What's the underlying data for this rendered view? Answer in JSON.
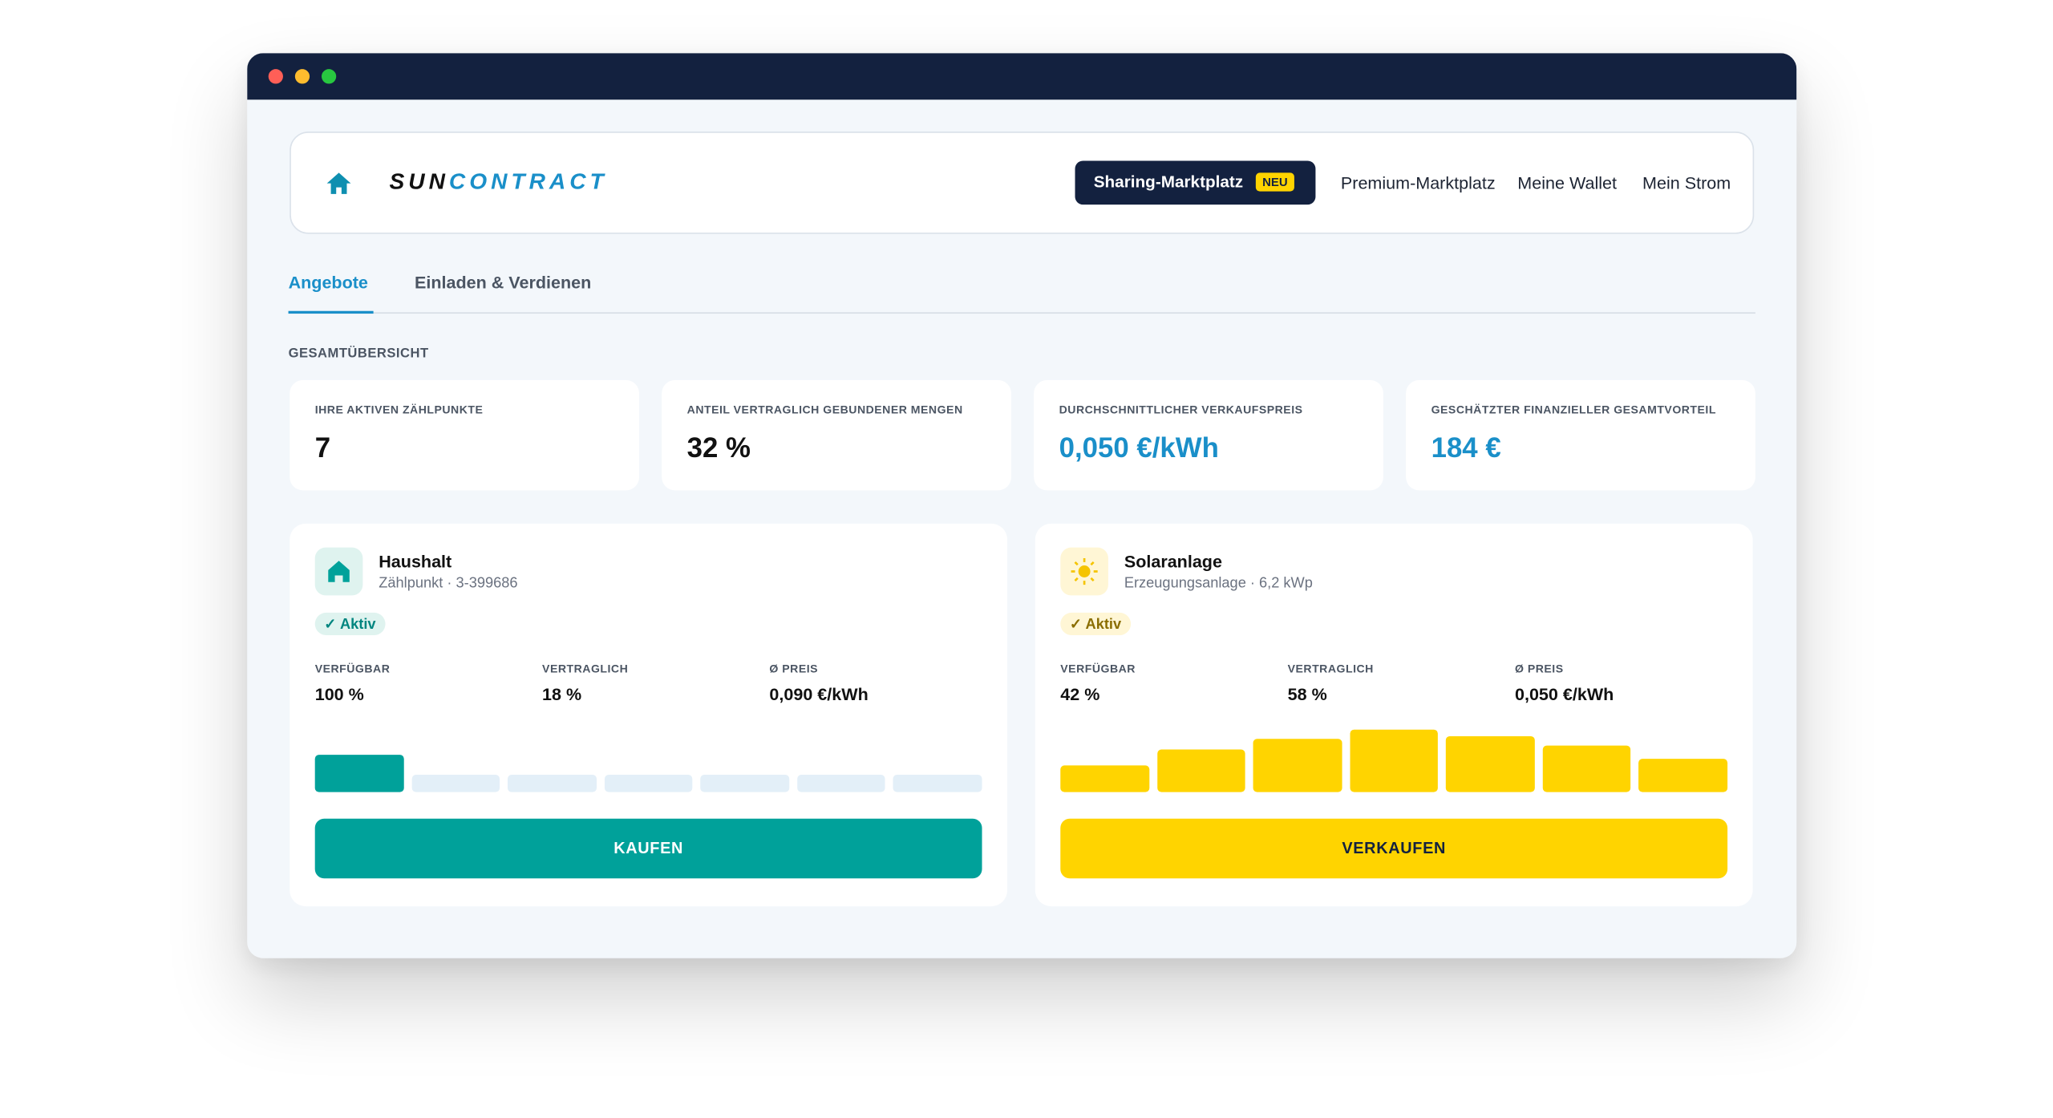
{
  "nav": {
    "logo_a": "SUN",
    "logo_b": "CONTRACT",
    "active": "Sharing-Marktplatz",
    "badge": "NEU",
    "links": [
      "Premium-Marktplatz",
      "Meine Wallet",
      "Mein Strom"
    ]
  },
  "tabs": [
    "Angebote",
    "Einladen & Verdienen"
  ],
  "section": "GESAMTÜBERSICHT",
  "stats": [
    {
      "label": "IHRE AKTIVEN ZÄHLPUNKTE",
      "value": "7"
    },
    {
      "label": "ANTEIL VERTRAGLICH GEBUNDENER MENGEN",
      "value": "32 %"
    },
    {
      "label": "DURCHSCHNITTLICHER VERKAUFSPREIS",
      "value": "0,050 €/kWh"
    },
    {
      "label": "GESCHÄTZTER FINANZIELLER GESAMTVORTEIL",
      "value": "184 €"
    }
  ],
  "cards": [
    {
      "name": "Haushalt",
      "subtitle": "Zählpunkt · 3-399686",
      "status": "✓ Aktiv",
      "metrics": [
        {
          "label": "VERFÜGBAR",
          "value": "100 %"
        },
        {
          "label": "VERTRAGLICH",
          "value": "18 %"
        },
        {
          "label": "Ø PREIS",
          "value": "0,090 €/kWh"
        }
      ],
      "bars": [
        28,
        13,
        13,
        13,
        13,
        13,
        13
      ],
      "bar_colors": [
        "#00a19a",
        "#e3eff8",
        "#e3eff8",
        "#e3eff8",
        "#e3eff8",
        "#e3eff8",
        "#e3eff8"
      ],
      "button": "KAUFEN"
    },
    {
      "name": "Solaranlage",
      "subtitle": "Erzeugungsanlage · 6,2 kWp",
      "status": "✓ Aktiv",
      "metrics": [
        {
          "label": "VERFÜGBAR",
          "value": "42 %"
        },
        {
          "label": "VERTRAGLICH",
          "value": "58 %"
        },
        {
          "label": "Ø PREIS",
          "value": "0,050 €/kWh"
        }
      ],
      "bars": [
        20,
        32,
        40,
        47,
        42,
        35,
        25
      ],
      "bar_colors": [
        "#ffd400",
        "#ffd400",
        "#ffd400",
        "#ffd400",
        "#ffd400",
        "#ffd400",
        "#ffd400"
      ],
      "button": "VERKAUFEN"
    }
  ]
}
